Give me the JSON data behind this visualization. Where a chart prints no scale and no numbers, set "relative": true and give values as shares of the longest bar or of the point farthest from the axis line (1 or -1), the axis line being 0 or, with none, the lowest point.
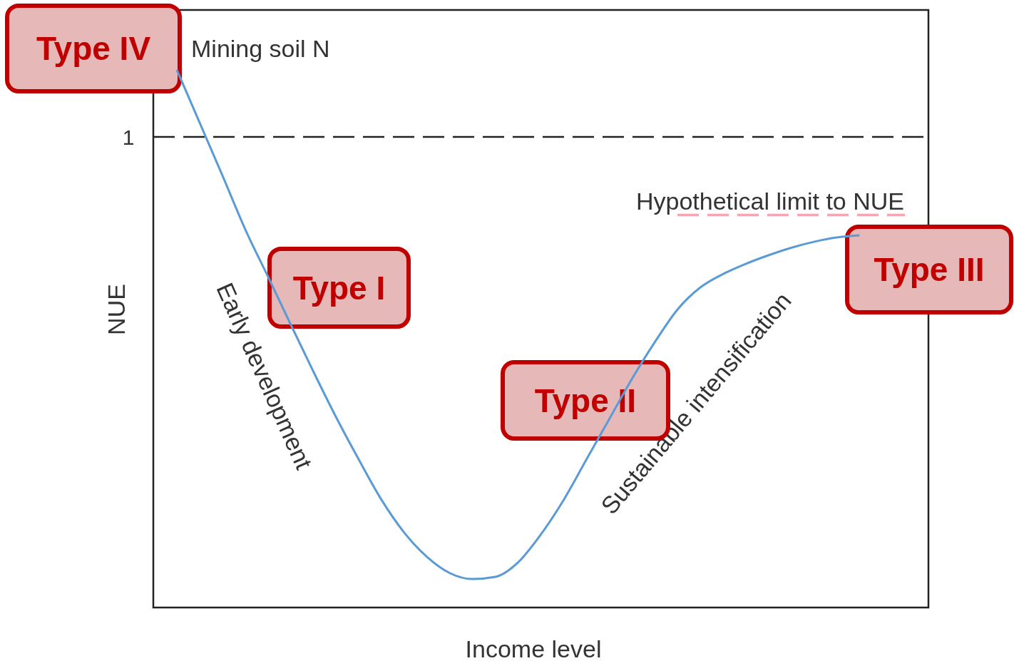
{
  "chart_data": {
    "type": "line",
    "relative": true,
    "xlabel": "Income level",
    "ylabel": "NUE",
    "marker": "none",
    "categories": [
      null,
      null,
      null,
      null,
      null,
      null,
      null,
      null,
      null,
      null,
      null,
      null,
      null,
      null,
      null,
      null,
      null,
      null,
      null,
      null,
      null,
      null,
      null,
      null,
      null,
      null,
      null,
      null,
      null,
      null,
      null,
      null,
      null,
      null,
      null
    ],
    "series": [
      {
        "color": "#5b9bd5",
        "line_style": "solid",
        "values": [
          null,
          1.0,
          0.902,
          0.804,
          0.704,
          0.616,
          0.527,
          0.439,
          0.354,
          0.275,
          0.2,
          0.139,
          0.094,
          0.064,
          0.053,
          0.057,
          0.084,
          0.136,
          0.2,
          0.275,
          0.35,
          0.425,
          0.493,
          0.554,
          0.595,
          0.62,
          0.639,
          0.655,
          0.669,
          0.68,
          0.688,
          0.692,
          null,
          null,
          null
        ]
      },
      {
        "color": "#f4a6b4",
        "line_style": "dashed",
        "values": [
          null,
          null,
          null,
          null,
          null,
          null,
          null,
          null,
          null,
          null,
          null,
          null,
          null,
          null,
          null,
          null,
          null,
          null,
          null,
          null,
          null,
          null,
          null,
          0.73,
          0.73,
          0.73,
          0.73,
          0.73,
          0.73,
          0.73,
          0.73,
          0.73,
          0.73,
          0.73,
          null
        ]
      }
    ],
    "ref_lines": [
      {
        "axis": "y",
        "value": 0.875,
        "label": "1",
        "color": "#222222",
        "line_style": "dashed"
      }
    ],
    "annotations": [
      "Mining soil N",
      "Hypothetical limit to NUE",
      "Early development",
      "Sustainable intensification",
      "Type IV",
      "Type I",
      "Type II",
      "Type III"
    ]
  }
}
